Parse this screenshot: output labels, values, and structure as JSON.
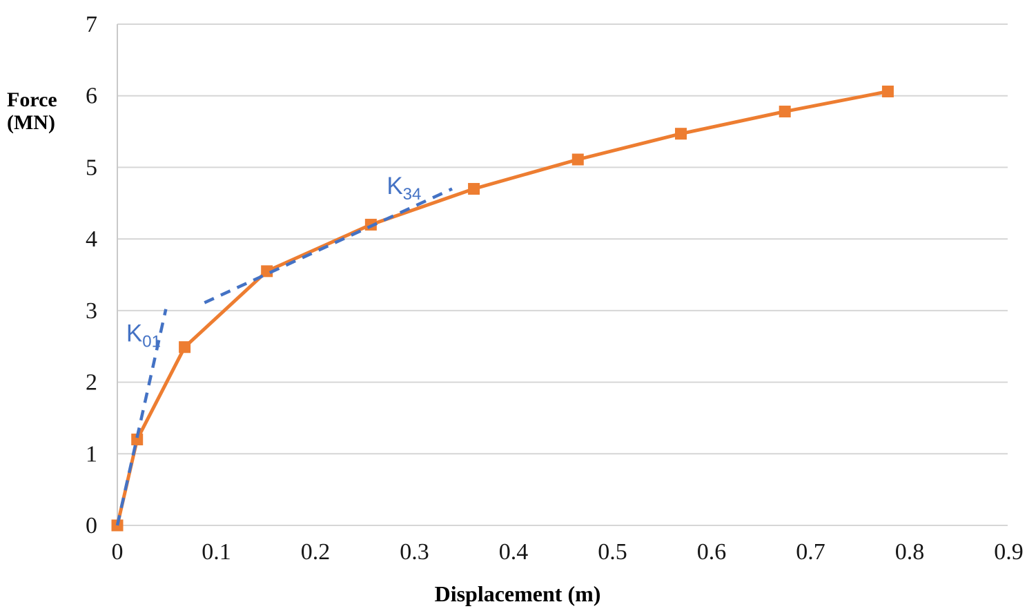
{
  "chart_data": {
    "type": "line",
    "title": "",
    "xlabel": "Displacement (m)",
    "ylabel": "Force (MN)",
    "ylabel_lines": [
      "Force",
      "(MN)"
    ],
    "xlim": [
      0,
      0.9
    ],
    "ylim": [
      0,
      7
    ],
    "grid": "horizontal",
    "legend": "none",
    "x_ticks": [
      0,
      0.1,
      0.2,
      0.3,
      0.4,
      0.5,
      0.6,
      0.7,
      0.8,
      0.9
    ],
    "x_tick_labels": [
      "0",
      "0.1",
      "0.2",
      "0.3",
      "0.4",
      "0.5",
      "0.6",
      "0.7",
      "0.8",
      "0.9"
    ],
    "y_ticks": [
      0,
      1,
      2,
      3,
      4,
      5,
      6,
      7
    ],
    "y_tick_labels": [
      "0",
      "1",
      "2",
      "3",
      "4",
      "5",
      "6",
      "7"
    ],
    "series": [
      {
        "name": "force-displacement-curve",
        "color": "#ED7D31",
        "marker": "square",
        "points": [
          [
            0,
            0
          ],
          [
            0.02,
            1.2
          ],
          [
            0.068,
            2.49
          ],
          [
            0.151,
            3.55
          ],
          [
            0.256,
            4.2
          ],
          [
            0.36,
            4.7
          ],
          [
            0.465,
            5.11
          ],
          [
            0.569,
            5.47
          ],
          [
            0.674,
            5.78
          ],
          [
            0.778,
            6.06
          ]
        ]
      }
    ],
    "annotations": [
      {
        "id": "K01",
        "label_main": "K",
        "label_sub": "01",
        "style": "dashed",
        "color": "#4472C4",
        "line": [
          [
            0,
            0
          ],
          [
            0.049,
            3.02
          ]
        ],
        "label_pos": [
          0.009,
          2.57
        ]
      },
      {
        "id": "K34",
        "label_main": "K",
        "label_sub": "34",
        "style": "dashed",
        "color": "#4472C4",
        "line": [
          [
            0.088,
            3.11
          ],
          [
            0.338,
            4.7
          ]
        ],
        "label_pos": [
          0.272,
          4.63
        ]
      }
    ]
  },
  "colors": {
    "series_orange": "#ED7D31",
    "annotation_blue": "#4472C4",
    "gridline": "#D6D6D6",
    "axis_line": "#C9C9C9",
    "text": "#161616",
    "background": "#FFFFFF"
  }
}
